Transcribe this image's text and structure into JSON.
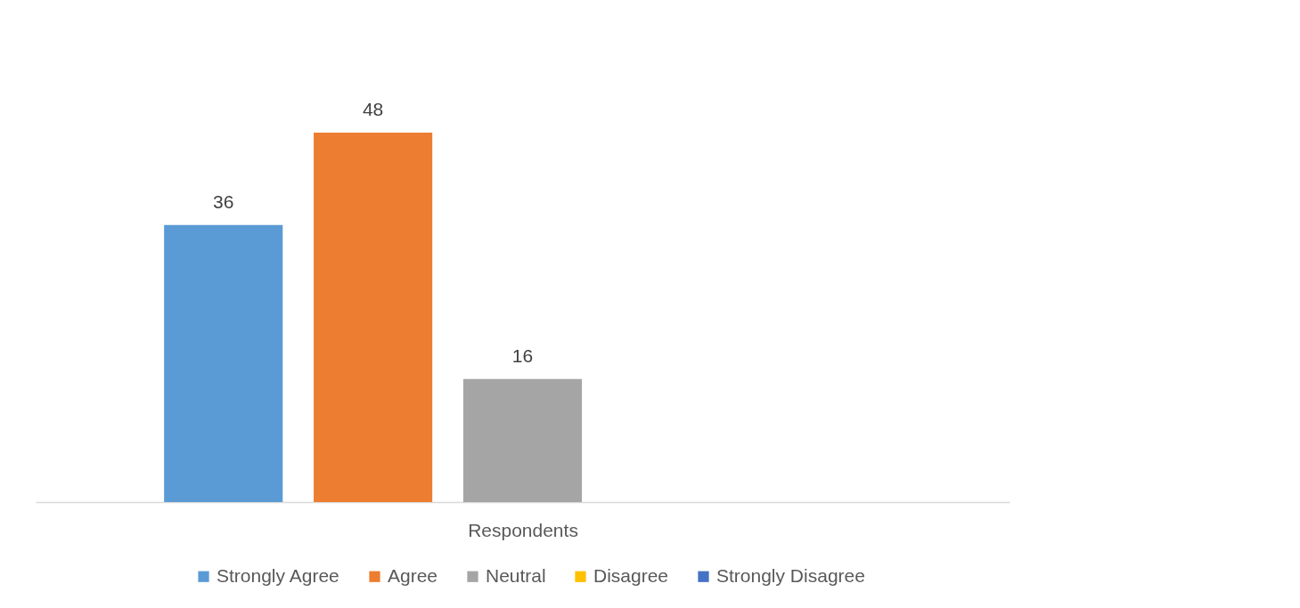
{
  "chart_data": {
    "type": "bar",
    "xlabel": "Respondents",
    "categories": [
      null
    ],
    "series": [
      {
        "name": "Strongly Agree",
        "color": "#5b9bd5",
        "values": [
          36
        ]
      },
      {
        "name": "Agree",
        "color": "#ed7d31",
        "values": [
          48
        ]
      },
      {
        "name": "Neutral",
        "color": "#a5a5a5",
        "values": [
          16
        ]
      },
      {
        "name": "Disagree",
        "color": "#ffc000",
        "values": [
          null
        ]
      },
      {
        "name": "Strongly Disagree",
        "color": "#4472c4",
        "values": [
          null
        ]
      }
    ],
    "data_labels": true,
    "legend": "bottom",
    "tick_labels": false
  }
}
